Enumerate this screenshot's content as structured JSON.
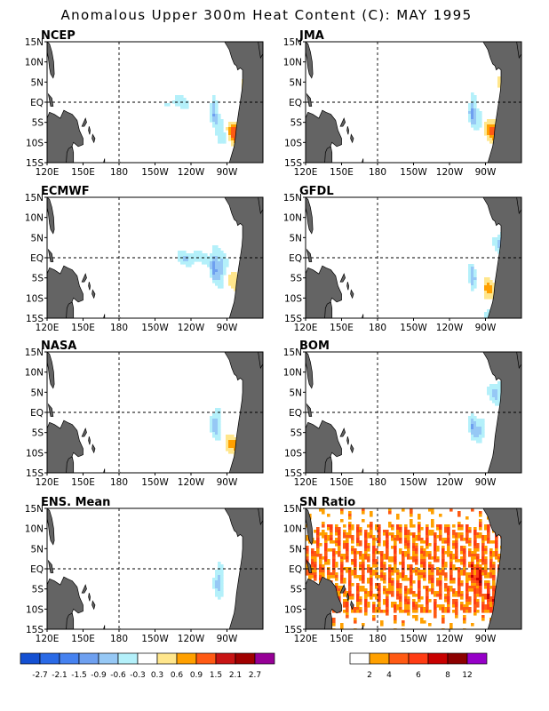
{
  "title": "Anomalous Upper 300m Heat Content (C): MAY 1995",
  "chart_data": {
    "type": "heatmap",
    "x_ticks": [
      "120E",
      "150E",
      "180",
      "150W",
      "120W",
      "90W"
    ],
    "y_ticks": [
      "15N",
      "10N",
      "5N",
      "EQ",
      "5S",
      "10S",
      "15S"
    ],
    "panels": [
      {
        "name": "NCEP",
        "scale": "anomaly",
        "blobs": [
          [
            11,
            36,
            -1.4,
            9,
            4
          ],
          [
            15,
            33,
            -1.2,
            8,
            4
          ],
          [
            3,
            36,
            -1.0,
            6,
            4
          ],
          [
            12,
            37,
            -1.0,
            10,
            4
          ],
          [
            10,
            -51,
            -0.9,
            7,
            3
          ],
          [
            17,
            -34,
            0.7,
            4,
            2
          ],
          [
            15,
            -39,
            0.7,
            3,
            2
          ],
          [
            17,
            14,
            0.5,
            4,
            2
          ],
          [
            5,
            -45,
            0.7,
            12,
            2.5
          ],
          [
            4,
            -70,
            0.7,
            8,
            2.5
          ],
          [
            -9,
            -45,
            2.0,
            7,
            3
          ],
          [
            -8,
            -57,
            1.9,
            6,
            3
          ],
          [
            -9,
            -70,
            1.3,
            10,
            3
          ],
          [
            -8,
            -85,
            1.1,
            9,
            3
          ],
          [
            -6,
            -31,
            0.8,
            6,
            2
          ],
          [
            -7,
            56,
            -0.6,
            6,
            3
          ],
          [
            -13,
            56,
            -1.1,
            5,
            2.5
          ],
          [
            -5,
            -95,
            -0.5,
            5,
            3
          ],
          [
            -2,
            -101,
            -0.8,
            3,
            4
          ],
          [
            -9,
            -93,
            -0.8,
            7,
            2.5
          ],
          [
            0,
            -130,
            -0.5,
            12,
            2
          ]
        ]
      },
      {
        "name": "JMA",
        "scale": "anomaly",
        "blobs": [
          [
            12,
            28,
            -1.5,
            8,
            3
          ],
          [
            14,
            35,
            -1.2,
            7,
            4
          ],
          [
            10,
            42,
            -1.0,
            7,
            4
          ],
          [
            4,
            37,
            -1.0,
            6,
            4
          ],
          [
            10,
            -56,
            -0.9,
            7,
            3
          ],
          [
            11,
            -34,
            0.6,
            3,
            2
          ],
          [
            16,
            -42,
            0.8,
            3,
            2
          ],
          [
            5,
            -50,
            0.8,
            12,
            2.5
          ],
          [
            5,
            -72,
            0.6,
            8,
            2.5
          ],
          [
            -9,
            -46,
            1.8,
            7,
            3
          ],
          [
            -8,
            -63,
            1.8,
            7,
            3
          ],
          [
            -8,
            -73,
            0.9,
            8,
            3
          ],
          [
            -7,
            -85,
            0.8,
            8,
            3
          ],
          [
            -6,
            -32,
            0.9,
            5,
            2
          ],
          [
            -7,
            55,
            -0.7,
            6,
            3
          ],
          [
            -13,
            55,
            -1.2,
            5,
            2.5
          ],
          [
            -4,
            -95,
            -0.6,
            5,
            3
          ],
          [
            -2,
            -101,
            -0.9,
            3,
            4
          ]
        ]
      },
      {
        "name": "ECMWF",
        "scale": "anomaly",
        "blobs": [
          [
            11,
            35,
            -1.1,
            9,
            4
          ],
          [
            15,
            -56,
            -0.9,
            4,
            2
          ],
          [
            10,
            47,
            -0.8,
            7,
            4
          ],
          [
            3,
            35,
            -0.8,
            6,
            3
          ],
          [
            13,
            -35,
            0.6,
            3,
            2
          ],
          [
            11,
            -42,
            0.6,
            3,
            2
          ],
          [
            7,
            -54,
            0.6,
            3,
            2
          ],
          [
            7,
            -71,
            0.5,
            3,
            2
          ],
          [
            -5,
            -49,
            1.3,
            9,
            3
          ],
          [
            -8,
            -34,
            1.6,
            5,
            3
          ],
          [
            -9,
            -59,
            1.7,
            6,
            3
          ],
          [
            -8,
            -71,
            1.2,
            7,
            3
          ],
          [
            -5,
            -85,
            0.6,
            6,
            2.5
          ],
          [
            -10,
            -52,
            2.1,
            3,
            2
          ],
          [
            -4,
            -20,
            0.6,
            6,
            2
          ],
          [
            -6,
            -1,
            0.7,
            4,
            2
          ],
          [
            -13,
            54,
            -0.7,
            5,
            2
          ],
          [
            -3,
            -95,
            -0.8,
            5,
            4
          ],
          [
            -2,
            -101,
            -0.8,
            3,
            4
          ],
          [
            0,
            -120,
            -0.6,
            15,
            2
          ]
        ]
      },
      {
        "name": "GFDL",
        "scale": "anomaly",
        "blobs": [
          [
            13,
            22,
            -1.3,
            9,
            3
          ],
          [
            15,
            42,
            -1.0,
            7,
            3
          ],
          [
            7,
            46,
            -0.8,
            9,
            3
          ],
          [
            -3,
            48,
            -0.8,
            8,
            3
          ],
          [
            4,
            -77,
            -0.8,
            6,
            2.5
          ],
          [
            15,
            -75,
            -0.8,
            4,
            2.5
          ],
          [
            8,
            -49,
            1.0,
            6,
            2
          ],
          [
            5,
            -38,
            0.6,
            3,
            2
          ],
          [
            10,
            -68,
            0.6,
            3,
            2
          ],
          [
            -6,
            -44,
            1.2,
            8,
            3
          ],
          [
            -8,
            -73,
            1.3,
            7,
            3
          ],
          [
            -8,
            -88,
            0.8,
            5,
            2.5
          ],
          [
            -8,
            -48,
            1.0,
            5,
            2.5
          ],
          [
            -5,
            -38,
            0.6,
            6,
            2
          ],
          [
            -12,
            56,
            -0.9,
            5,
            2.5
          ],
          [
            -5,
            -101,
            -0.8,
            3,
            4
          ],
          [
            -14,
            -87,
            -0.6,
            5,
            1.5
          ]
        ]
      },
      {
        "name": "NASA",
        "scale": "anomaly",
        "blobs": [
          [
            11,
            35,
            -1.6,
            8,
            4
          ],
          [
            15,
            27,
            -1.5,
            8,
            3
          ],
          [
            8,
            41,
            -1.2,
            8,
            4
          ],
          [
            4,
            39,
            -1.0,
            6,
            3
          ],
          [
            8,
            -54,
            -0.6,
            8,
            3
          ],
          [
            12,
            -40,
            1.2,
            3,
            2
          ],
          [
            13,
            -50,
            0.6,
            5,
            2
          ],
          [
            -7,
            -48,
            2.0,
            7,
            3
          ],
          [
            -8,
            -61,
            1.8,
            6,
            3
          ],
          [
            -9,
            -75,
            1.0,
            8,
            3
          ],
          [
            -8,
            -88,
            0.6,
            6,
            2.5
          ],
          [
            -5,
            -31,
            0.7,
            5,
            2
          ],
          [
            -7,
            -12,
            0.6,
            5,
            2
          ],
          [
            -13,
            56,
            -0.8,
            5,
            2.5
          ],
          [
            -3,
            -99,
            -0.8,
            5,
            4
          ],
          [
            -11,
            -72,
            0.5,
            6,
            2
          ]
        ]
      },
      {
        "name": "BOM",
        "scale": "anomaly",
        "blobs": [
          [
            12,
            25,
            -1.2,
            8,
            3
          ],
          [
            10,
            42,
            -1.1,
            7,
            4
          ],
          [
            4,
            38,
            -0.9,
            6,
            3
          ],
          [
            14,
            48,
            -0.8,
            6,
            3
          ],
          [
            15,
            -62,
            -0.8,
            7,
            2.5
          ],
          [
            5,
            -81,
            -0.7,
            7,
            3
          ],
          [
            12,
            -48,
            0.7,
            3,
            2
          ],
          [
            8,
            -59,
            0.9,
            3,
            2
          ],
          [
            3,
            -52,
            0.5,
            3,
            2
          ],
          [
            -8,
            -41,
            1.0,
            6,
            3
          ],
          [
            -6,
            -30,
            0.8,
            5,
            2
          ],
          [
            -9,
            -55,
            0.7,
            7,
            2.5
          ],
          [
            -13,
            48,
            -0.6,
            6,
            2
          ],
          [
            -4,
            -95,
            -0.7,
            5,
            3
          ],
          [
            -3,
            -101,
            -0.7,
            3,
            4
          ]
        ]
      },
      {
        "name": "ENS. Mean",
        "scale": "anomaly",
        "blobs": [
          [
            11,
            33,
            -1.3,
            9,
            4
          ],
          [
            15,
            28,
            -1.2,
            7,
            3
          ],
          [
            8,
            42,
            -1.0,
            8,
            4
          ],
          [
            3,
            38,
            -0.9,
            6,
            3
          ],
          [
            10,
            -55,
            -0.7,
            8,
            3
          ],
          [
            12,
            -39,
            0.7,
            3,
            2
          ],
          [
            9,
            -50,
            0.6,
            4,
            2
          ],
          [
            5,
            -70,
            0.5,
            6,
            2
          ],
          [
            -7,
            -47,
            1.6,
            8,
            3
          ],
          [
            -8,
            -62,
            1.5,
            7,
            3
          ],
          [
            -8,
            -74,
            0.9,
            7,
            3
          ],
          [
            -6,
            -31,
            0.8,
            6,
            2
          ],
          [
            -13,
            55,
            -0.8,
            5,
            2.5
          ],
          [
            -3,
            -97,
            -0.8,
            4,
            4
          ]
        ]
      },
      {
        "name": "SN Ratio",
        "scale": "sn",
        "blobs": [
          [
            -8,
            -50,
            9,
            25,
            3
          ],
          [
            -8,
            -73,
            6,
            10,
            3
          ],
          [
            11,
            40,
            7,
            14,
            3
          ],
          [
            14,
            27,
            6,
            6,
            2
          ],
          [
            4,
            36,
            6,
            5,
            2
          ],
          [
            9,
            -62,
            5,
            8,
            2
          ],
          [
            -2,
            -97,
            4,
            4,
            3
          ],
          [
            2,
            -58,
            5,
            8,
            2
          ],
          [
            -13,
            54,
            4,
            5,
            2
          ]
        ]
      }
    ],
    "anomaly_colorbar": {
      "levels": [
        "-2.7",
        "-2.1",
        "-1.5",
        "-0.9",
        "-0.6",
        "-0.3",
        "0.3",
        "0.6",
        "0.9",
        "1.5",
        "2.1",
        "2.7"
      ],
      "colors": [
        "#1450d2",
        "#2a6ae6",
        "#4682f0",
        "#6ea0f0",
        "#96c8f5",
        "#b4f0fa",
        "#ffffff",
        "#ffe68c",
        "#ffa000",
        "#ff5a14",
        "#c81414",
        "#a00000",
        "#960096"
      ]
    },
    "sn_colorbar": {
      "labels": [
        "2",
        "4",
        "6",
        "8",
        "12"
      ],
      "colors": [
        "#ffffff",
        "#ffa000",
        "#ff5a14",
        "#ff3c14",
        "#c80000",
        "#8c0000",
        "#9600c8"
      ]
    },
    "land_color": "#646464",
    "x_range": [
      120,
      290
    ],
    "y_range": [
      -15,
      15
    ],
    "grid": "dashed lines at 180 and EQ"
  }
}
